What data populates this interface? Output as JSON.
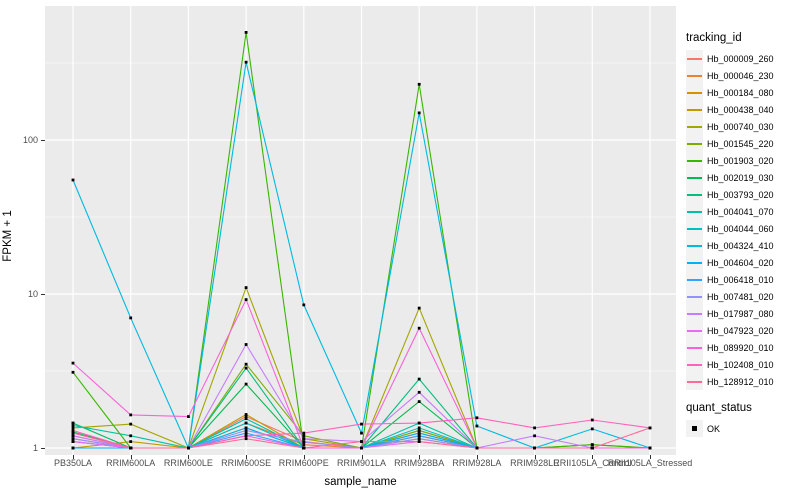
{
  "chart_data": {
    "type": "line",
    "title": "",
    "xlabel": "sample_name",
    "ylabel": "FPKM + 1",
    "yscale": "log10",
    "ylim": [
      0.9,
      700
    ],
    "y_major_ticks": [
      1,
      10,
      100
    ],
    "y_tick_labels": [
      "1",
      "10",
      "100"
    ],
    "y_minor_ticks": [
      3.162,
      31.62,
      316.2
    ],
    "grid": "on",
    "legend_position": "right",
    "panel_bg": "#EBEBEB",
    "grid_color": "#FFFFFF",
    "categories": [
      "PB350LA",
      "RRIM600LA",
      "RRIM600LE",
      "RRIM600SE",
      "RRIM600PE",
      "RRIM901LA",
      "RRIM928BA",
      "RRIM928LA",
      "RRIM928LE",
      "RRII105LA_Control",
      "RRII105LA_Stressed"
    ],
    "series": [
      {
        "name": "Hb_000009_260",
        "color": "#F8766D",
        "values": [
          1.2,
          1,
          1,
          1.6,
          1.1,
          1,
          1.3,
          1,
          1,
          1,
          1
        ]
      },
      {
        "name": "Hb_000046_230",
        "color": "#EA8331",
        "values": [
          1.15,
          1,
          1,
          1.45,
          1.05,
          1,
          1.25,
          1,
          1,
          1,
          1
        ]
      },
      {
        "name": "Hb_000184_080",
        "color": "#D89000",
        "values": [
          1.1,
          1,
          1,
          1.35,
          1,
          1,
          1.2,
          1,
          1,
          1,
          1
        ]
      },
      {
        "name": "Hb_000438_040",
        "color": "#C09B00",
        "values": [
          1,
          1.1,
          1,
          1.65,
          1,
          1,
          1.15,
          1,
          1,
          1,
          1
        ]
      },
      {
        "name": "Hb_000740_030",
        "color": "#A3A500",
        "values": [
          1.35,
          1.43,
          1,
          11,
          1.15,
          1,
          8.1,
          1,
          1,
          1,
          1
        ]
      },
      {
        "name": "Hb_001545_220",
        "color": "#7CAE00",
        "values": [
          1.45,
          1,
          1,
          3.5,
          1.2,
          1,
          1.3,
          1,
          1,
          1.05,
          1
        ]
      },
      {
        "name": "Hb_001903_020",
        "color": "#39B600",
        "values": [
          3.1,
          1,
          1,
          500,
          1,
          1,
          230,
          1,
          1,
          1.05,
          1
        ]
      },
      {
        "name": "Hb_002019_030",
        "color": "#00BB4E",
        "values": [
          1.27,
          1,
          1,
          2.6,
          1,
          1,
          2.0,
          1,
          1,
          1,
          1
        ]
      },
      {
        "name": "Hb_003793_020",
        "color": "#00BF7D",
        "values": [
          1.45,
          1,
          1,
          3.3,
          1,
          1,
          2.8,
          1,
          1,
          1,
          1
        ]
      },
      {
        "name": "Hb_004041_070",
        "color": "#00C1A3",
        "values": [
          1.4,
          1.2,
          1,
          1.55,
          1,
          1,
          1.45,
          1,
          1,
          1,
          1
        ]
      },
      {
        "name": "Hb_004044_060",
        "color": "#00BFC4",
        "values": [
          1,
          1,
          1,
          1.45,
          1,
          1,
          1.35,
          1,
          1,
          1,
          1
        ]
      },
      {
        "name": "Hb_004324_410",
        "color": "#00BAE0",
        "values": [
          55,
          7,
          1,
          320,
          8.5,
          1.25,
          150,
          1.39,
          1,
          1.33,
          1
        ]
      },
      {
        "name": "Hb_004604_020",
        "color": "#00B0F6",
        "values": [
          1,
          1,
          1,
          1.35,
          1,
          1,
          1.25,
          1,
          1,
          1,
          1
        ]
      },
      {
        "name": "Hb_006418_010",
        "color": "#35A2FF",
        "values": [
          1.1,
          1,
          1,
          1.25,
          1,
          1,
          1.2,
          1,
          1,
          1,
          1
        ]
      },
      {
        "name": "Hb_007481_020",
        "color": "#9590FF",
        "values": [
          1.15,
          1,
          1,
          1.3,
          1.09,
          1,
          1.15,
          1,
          1,
          1,
          1
        ]
      },
      {
        "name": "Hb_017987_080",
        "color": "#C77CFF",
        "values": [
          1.2,
          1,
          1,
          4.7,
          1.15,
          1.1,
          2.3,
          1,
          1.2,
          1,
          1
        ]
      },
      {
        "name": "Hb_047923_020",
        "color": "#E76BF3",
        "values": [
          1.1,
          1,
          1,
          1.2,
          1,
          1,
          1.1,
          1,
          1,
          1,
          1
        ]
      },
      {
        "name": "Hb_089920_010",
        "color": "#FA62DB",
        "values": [
          3.56,
          1.64,
          1.6,
          9.2,
          1,
          1,
          6.0,
          1,
          1,
          1,
          1
        ]
      },
      {
        "name": "Hb_102408_010",
        "color": "#FF62BC",
        "values": [
          1.3,
          1,
          1,
          1.2,
          1.25,
          1.43,
          1.45,
          1.57,
          1.35,
          1.52,
          1.35
        ]
      },
      {
        "name": "Hb_128912_010",
        "color": "#FF6A98",
        "values": [
          1.25,
          1,
          1,
          1.15,
          1,
          1.1,
          1.1,
          1,
          1,
          1,
          1.35
        ]
      }
    ],
    "point_marker": {
      "shape": "square",
      "color": "#000000"
    }
  },
  "legend": {
    "tracking_title": "tracking_id",
    "quant_title": "quant_status",
    "quant_items": [
      {
        "label": "OK",
        "color": "#000000"
      }
    ]
  }
}
